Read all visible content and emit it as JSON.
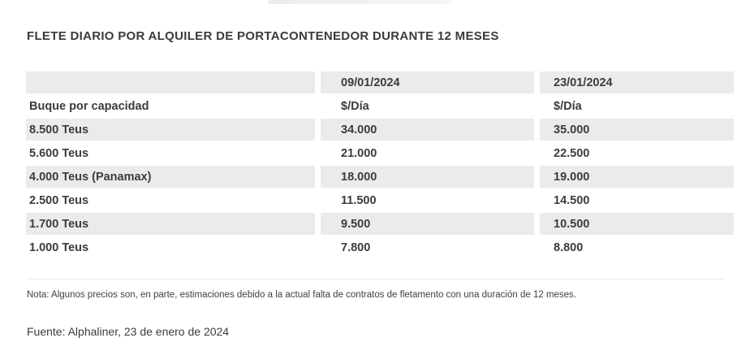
{
  "title": "FLETE DIARIO POR ALQUILER DE PORTACONTENEDOR DURANTE 12 MESES",
  "table": {
    "rows": [
      [
        "",
        "09/01/2024",
        "23/01/2024"
      ],
      [
        "Buque por capacidad",
        "$/Día",
        "$/Día"
      ],
      [
        "8.500 Teus",
        "34.000",
        "35.000"
      ],
      [
        "5.600 Teus",
        "21.000",
        "22.500"
      ],
      [
        "4.000 Teus (Panamax)",
        "18.000",
        "19.000"
      ],
      [
        "2.500 Teus",
        "11.500",
        "14.500"
      ],
      [
        "1.700 Teus",
        "9.500",
        "10.500"
      ],
      [
        "1.000 Teus",
        "7.800",
        "8.800"
      ]
    ]
  },
  "note": "Nota: Algunos precios son, en parte, estimaciones debido a la actual falta de contratos de fletamento con una duración de 12 meses.",
  "source": "Fuente: Alphaliner, 23 de enero de 2024",
  "colors": {
    "row_stripe": "#ebebeb",
    "text": "#3c3c3c",
    "background": "#ffffff"
  },
  "chart_data": {
    "type": "table",
    "title": "FLETE DIARIO POR ALQUILER DE PORTACONTENEDOR DURANTE 12 MESES",
    "columns": [
      "Buque por capacidad",
      "09/01/2024",
      "23/01/2024"
    ],
    "unit": "$/Día",
    "rows": [
      {
        "capacity": "8.500 Teus",
        "rate_2024_01_09": 34000,
        "rate_2024_01_23": 35000
      },
      {
        "capacity": "5.600 Teus",
        "rate_2024_01_09": 21000,
        "rate_2024_01_23": 22500
      },
      {
        "capacity": "4.000 Teus (Panamax)",
        "rate_2024_01_09": 18000,
        "rate_2024_01_23": 19000
      },
      {
        "capacity": "2.500 Teus",
        "rate_2024_01_09": 11500,
        "rate_2024_01_23": 14500
      },
      {
        "capacity": "1.700 Teus",
        "rate_2024_01_09": 9500,
        "rate_2024_01_23": 10500
      },
      {
        "capacity": "1.000 Teus",
        "rate_2024_01_09": 7800,
        "rate_2024_01_23": 8800
      }
    ],
    "note": "Nota: Algunos precios son, en parte, estimaciones debido a la actual falta de contratos de fletamento con una duración de 12 meses.",
    "source": "Fuente: Alphaliner, 23 de enero de 2024"
  }
}
